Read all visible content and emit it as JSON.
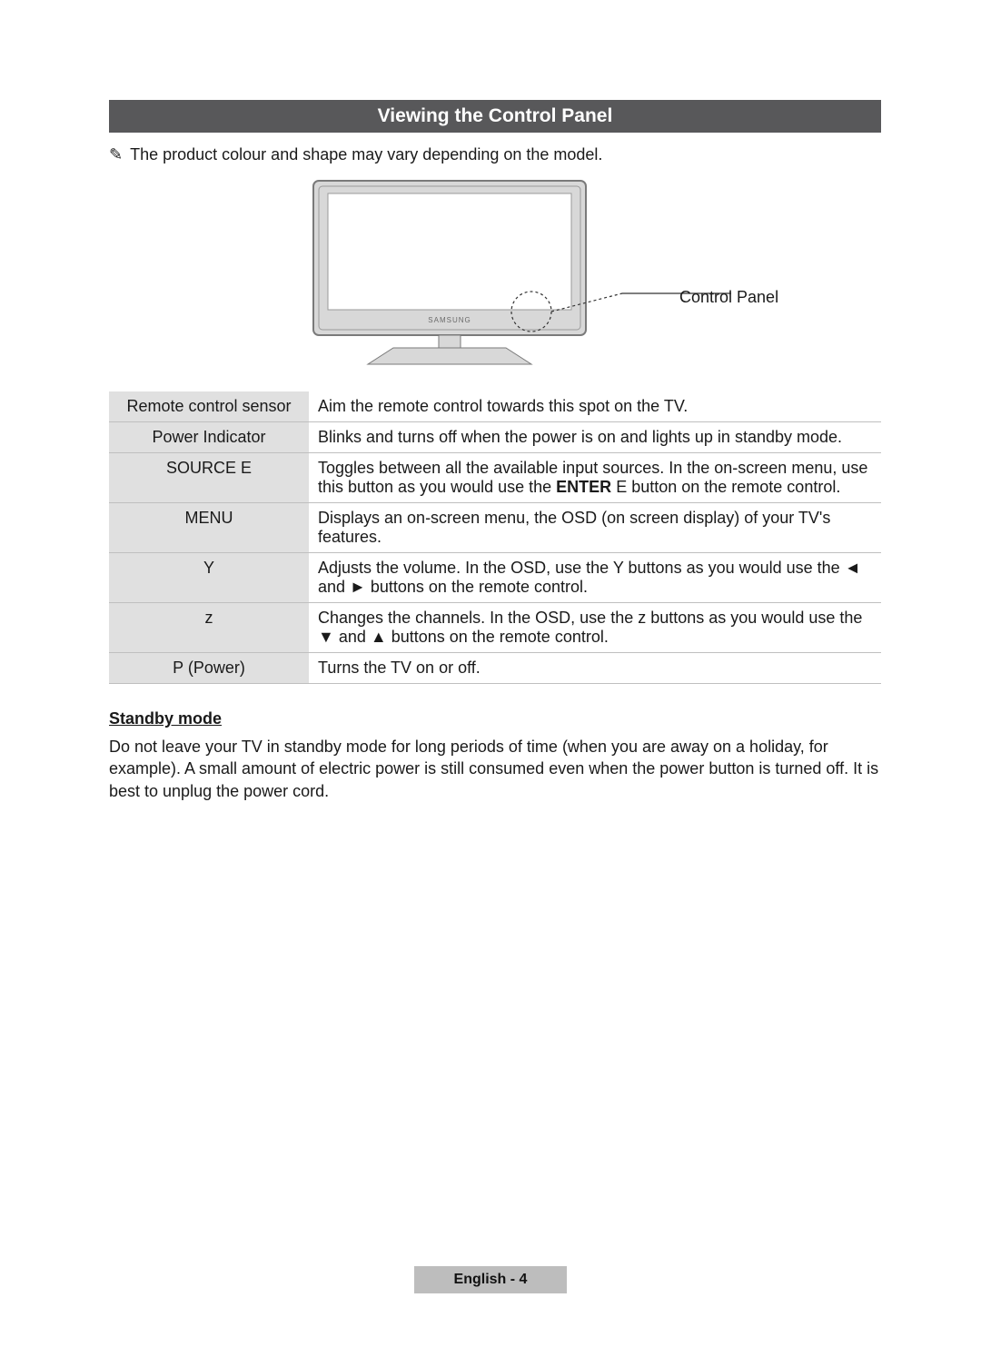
{
  "title": "Viewing the Control Panel",
  "note_icon": "✎",
  "note": "The product colour and shape may vary depending on the model.",
  "diagram": {
    "callout_label": "Control Panel",
    "logo_text": "SAMSUNG",
    "colors": {
      "tv_fill": "#d8d8d8",
      "tv_stroke": "#7a7a7a",
      "screen_fill": "#ffffff",
      "stand_fill": "#d8d8d8",
      "callout_stroke": "#333333"
    }
  },
  "rows": [
    {
      "label": "Remote control sensor",
      "desc_html": "Aim the remote control towards this spot on the TV."
    },
    {
      "label": "Power Indicator",
      "desc_html": "Blinks and turns off when the power is on and lights up in standby mode."
    },
    {
      "label": "SOURCE E",
      "desc_html": "Toggles between all the available input sources. In the on-screen menu, use this button as you would use the <b>ENTER</b> E button on the remote control."
    },
    {
      "label": "MENU",
      "desc_html": "Displays an on-screen menu, the OSD (on screen display) of your TV's features."
    },
    {
      "label": "Y",
      "desc_html": "Adjusts the volume. In the OSD, use the Y buttons as you would use the <span class='arrow-sym'>◄</span> and <span class='arrow-sym'>►</span> buttons on the remote control."
    },
    {
      "label": "z",
      "desc_html": "Changes the channels. In the OSD, use the z buttons as you would use the <span class='arrow-sym'>▼</span> and <span class='arrow-sym'>▲</span> buttons on the remote control."
    },
    {
      "label": "P (Power)",
      "desc_html": "Turns the TV on or off."
    }
  ],
  "standby": {
    "heading": "Standby mode",
    "body": "Do not leave your TV in standby mode for long periods of time (when you are away on a holiday, for example). A small amount of electric power is still consumed even when the power button is turned off. It is best to unplug the power cord."
  },
  "footer": "English - 4"
}
